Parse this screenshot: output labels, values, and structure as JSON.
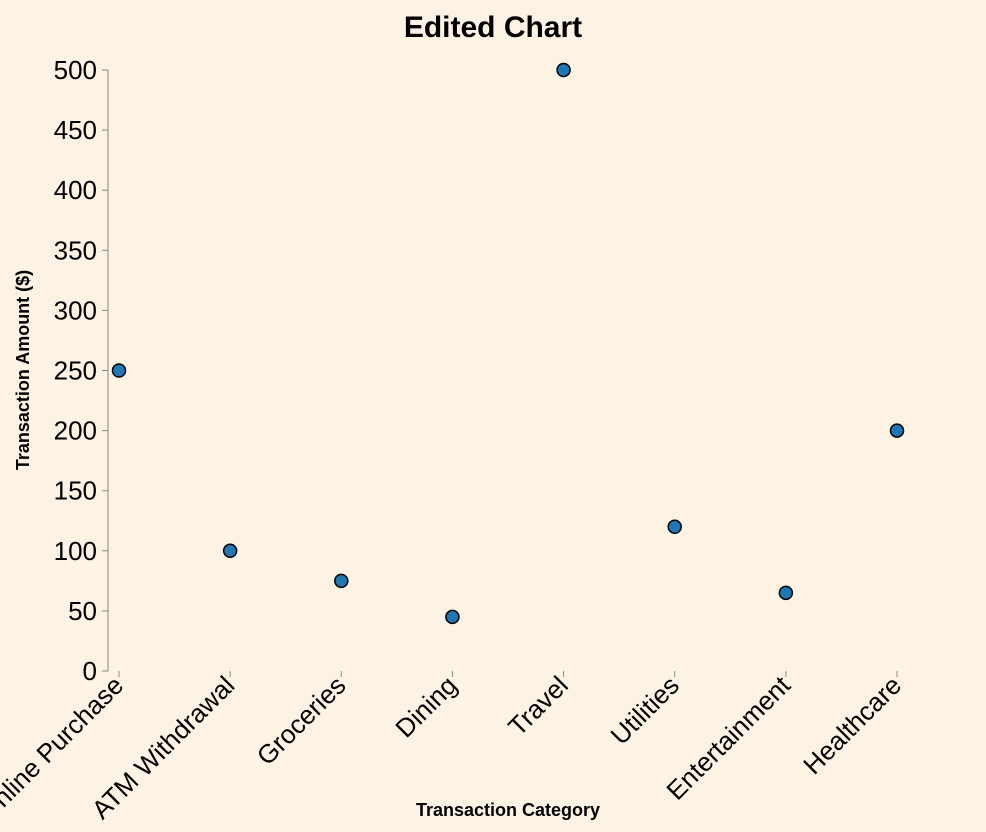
{
  "chart_data": {
    "type": "scatter",
    "title": "Edited Chart",
    "xlabel": "Transaction Category",
    "ylabel": "Transaction Amount ($)",
    "categories": [
      "Online Purchase",
      "ATM Withdrawal",
      "Groceries",
      "Dining",
      "Travel",
      "Utilities",
      "Entertainment",
      "Healthcare"
    ],
    "values": [
      250,
      100,
      75,
      45,
      500,
      120,
      65,
      200
    ],
    "ylim": [
      0,
      500
    ],
    "yticks": [
      0,
      50,
      100,
      150,
      200,
      250,
      300,
      350,
      400,
      450,
      500
    ],
    "grid": false,
    "point_color": "#1f77b4",
    "background": "#fdf3e4"
  }
}
